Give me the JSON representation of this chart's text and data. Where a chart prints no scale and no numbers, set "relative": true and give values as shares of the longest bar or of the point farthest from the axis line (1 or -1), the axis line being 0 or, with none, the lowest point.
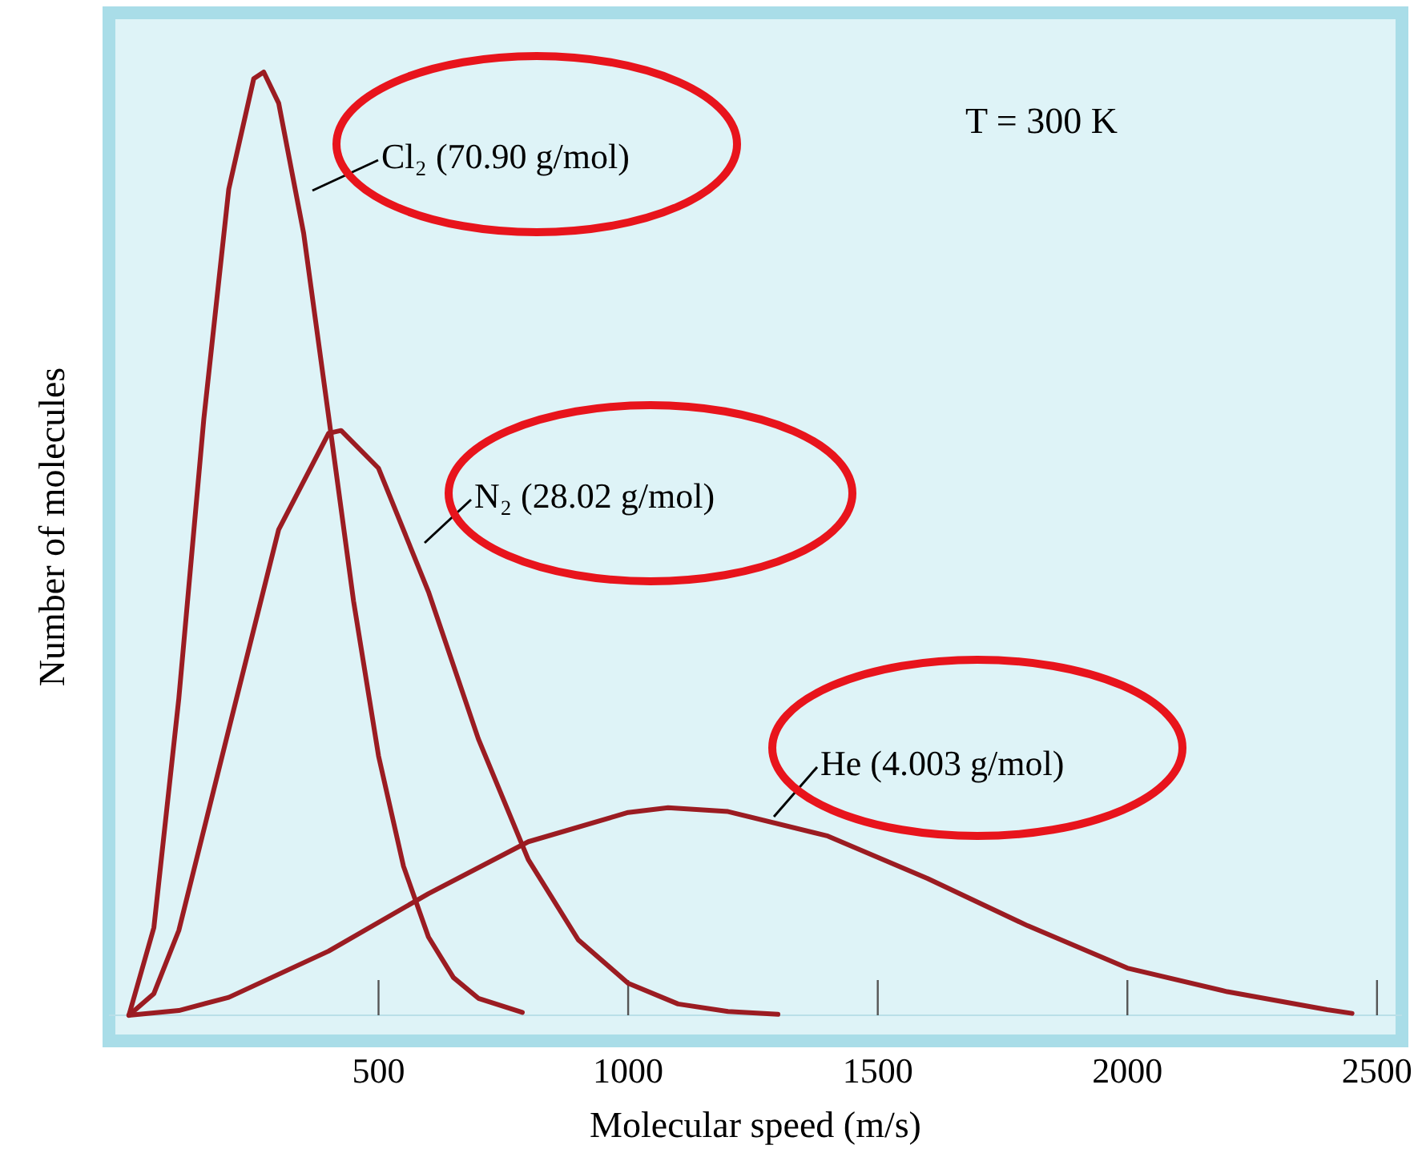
{
  "chart_data": {
    "type": "line",
    "relative": true,
    "xlabel": "Molecular speed (m/s)",
    "ylabel": "Number of molecules",
    "xlim": [
      -40,
      2550
    ],
    "xticks": [
      500,
      1000,
      1500,
      2000,
      2500
    ],
    "annotations": [
      "T = 300 K"
    ],
    "series": [
      {
        "name": "Cl₂ (70.90 g/mol)",
        "color": "#9b1c22",
        "x": [
          0,
          50,
          100,
          150,
          200,
          250,
          270,
          300,
          350,
          400,
          450,
          500,
          550,
          600,
          650,
          700,
          788
        ],
        "values": [
          0,
          0.093,
          0.336,
          0.632,
          0.876,
          0.993,
          1,
          0.967,
          0.829,
          0.635,
          0.439,
          0.275,
          0.158,
          0.083,
          0.04,
          0.018,
          0.003
        ]
      },
      {
        "name": "N₂ (28.02 g/mol)",
        "color": "#9b1c22",
        "x": [
          0,
          50,
          100,
          200,
          300,
          400,
          425,
          500,
          600,
          700,
          800,
          900,
          1000,
          1100,
          1200,
          1300
        ],
        "values": [
          0,
          0.023,
          0.09,
          0.303,
          0.515,
          0.617,
          0.62,
          0.58,
          0.449,
          0.293,
          0.165,
          0.08,
          0.034,
          0.012,
          0.004,
          0.001
        ]
      },
      {
        "name": "He (4.003 g/mol)",
        "color": "#9b1c22",
        "x": [
          0,
          100,
          200,
          400,
          600,
          800,
          1000,
          1080,
          1200,
          1400,
          1600,
          1800,
          2000,
          2200,
          2400,
          2450
        ],
        "values": [
          0,
          0.005,
          0.019,
          0.068,
          0.129,
          0.184,
          0.215,
          0.22,
          0.216,
          0.19,
          0.145,
          0.095,
          0.05,
          0.025,
          0.006,
          0.002
        ]
      }
    ]
  }
}
